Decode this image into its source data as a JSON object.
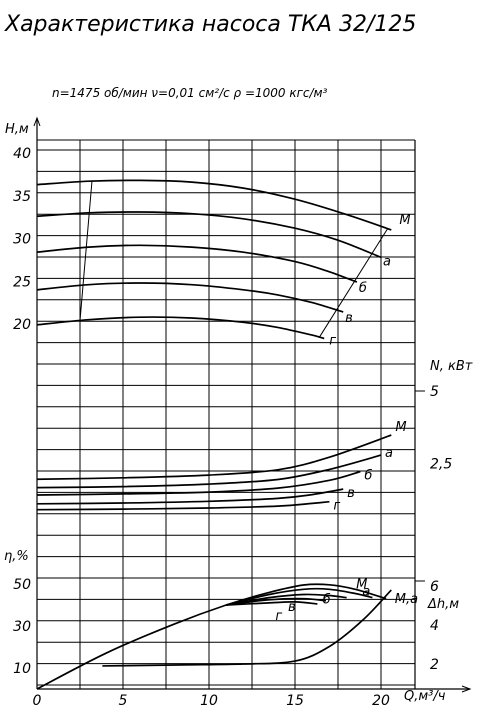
{
  "chart_data": {
    "type": "line",
    "title": "Характеристика насоса ТКА 32/125",
    "subtitle": "n=1475 об/мин   ν=0,01 см²/с    ρ =1000 кгс/м³",
    "x_axis": {
      "label": "Q,м³/ч",
      "range": [
        0,
        22
      ],
      "tick_labels": [
        "0",
        "5",
        "10",
        "15",
        "20"
      ]
    },
    "panels": [
      {
        "id": "head",
        "ylabel": "H,м",
        "ylim": [
          17.5,
          40
        ],
        "tick_labels": [
          "20",
          "25",
          "30",
          "35",
          "40"
        ],
        "series": [
          {
            "name": "M",
            "points": [
              [
                0,
                36.3
              ],
              [
                3,
                36.7
              ],
              [
                6,
                36.8
              ],
              [
                9,
                36.6
              ],
              [
                12,
                35.9
              ],
              [
                15,
                34.6
              ],
              [
                18,
                32.8
              ],
              [
                20.6,
                31.0
              ]
            ]
          },
          {
            "name": "а",
            "points": [
              [
                0,
                32.6
              ],
              [
                3,
                33.0
              ],
              [
                6,
                33.1
              ],
              [
                9,
                32.9
              ],
              [
                12,
                32.3
              ],
              [
                15,
                31.2
              ],
              [
                17.5,
                29.8
              ],
              [
                20,
                27.8
              ]
            ]
          },
          {
            "name": "б",
            "points": [
              [
                0,
                28.4
              ],
              [
                3,
                29.0
              ],
              [
                6,
                29.2
              ],
              [
                9,
                29.0
              ],
              [
                12,
                28.4
              ],
              [
                15,
                27.3
              ],
              [
                17,
                26.1
              ],
              [
                18.6,
                24.9
              ]
            ]
          },
          {
            "name": "в",
            "points": [
              [
                0,
                24.0
              ],
              [
                3,
                24.6
              ],
              [
                6,
                24.8
              ],
              [
                9,
                24.6
              ],
              [
                12,
                24.0
              ],
              [
                14,
                23.4
              ],
              [
                16,
                22.5
              ],
              [
                17.8,
                21.4
              ]
            ]
          },
          {
            "name": "г",
            "points": [
              [
                0,
                19.9
              ],
              [
                3,
                20.5
              ],
              [
                6,
                20.8
              ],
              [
                9,
                20.7
              ],
              [
                12,
                20.2
              ],
              [
                14,
                19.6
              ],
              [
                16,
                18.7
              ],
              [
                16.7,
                18.3
              ]
            ]
          }
        ],
        "impeller_trim_lines": [
          {
            "from": [
              2.5,
              20.4
            ],
            "to": [
              3.2,
              36.8
            ]
          },
          {
            "from": [
              16.4,
              18.4
            ],
            "to": [
              20.4,
              31.2
            ]
          }
        ]
      },
      {
        "id": "power",
        "ylabel": "N, кВт",
        "tick_labels": [
          "2,5",
          "5"
        ],
        "series": [
          {
            "name": "M",
            "points": [
              [
                0,
                1.75
              ],
              [
                5,
                1.82
              ],
              [
                10,
                1.95
              ],
              [
                14,
                2.2
              ],
              [
                17,
                2.8
              ],
              [
                20.6,
                3.85
              ]
            ]
          },
          {
            "name": "а",
            "points": [
              [
                0,
                1.35
              ],
              [
                5,
                1.4
              ],
              [
                10,
                1.52
              ],
              [
                14,
                1.74
              ],
              [
                17,
                2.22
              ],
              [
                20,
                2.9
              ]
            ]
          },
          {
            "name": "б",
            "points": [
              [
                0,
                1.0
              ],
              [
                5,
                1.05
              ],
              [
                10,
                1.14
              ],
              [
                14,
                1.33
              ],
              [
                17,
                1.7
              ],
              [
                18.8,
                2.12
              ]
            ]
          },
          {
            "name": "в",
            "points": [
              [
                0,
                0.58
              ],
              [
                5,
                0.62
              ],
              [
                10,
                0.7
              ],
              [
                14,
                0.84
              ],
              [
                16,
                1.02
              ],
              [
                17.8,
                1.28
              ]
            ]
          },
          {
            "name": "г",
            "points": [
              [
                0,
                0.3
              ],
              [
                5,
                0.33
              ],
              [
                10,
                0.38
              ],
              [
                14,
                0.47
              ],
              [
                16,
                0.6
              ],
              [
                17,
                0.68
              ]
            ]
          }
        ]
      },
      {
        "id": "efficiency",
        "ylabel": "η,%",
        "ylim": [
          0,
          58
        ],
        "tick_labels": [
          "10",
          "30",
          "50"
        ],
        "series": [
          {
            "name": "M",
            "points": [
              [
                0,
                0
              ],
              [
                4,
                17
              ],
              [
                8,
                31
              ],
              [
                11,
                40
              ],
              [
                13.5,
                46
              ],
              [
                15.5,
                49.5
              ],
              [
                17,
                49.6
              ],
              [
                18.5,
                47.5
              ],
              [
                20.3,
                43.0
              ]
            ]
          },
          {
            "name": "а",
            "points": [
              [
                11,
                40
              ],
              [
                13.5,
                45
              ],
              [
                15.5,
                47.5
              ],
              [
                17,
                47.5
              ],
              [
                18.5,
                45.5
              ],
              [
                19.5,
                43.5
              ]
            ]
          },
          {
            "name": "б",
            "points": [
              [
                11,
                40
              ],
              [
                13.5,
                43.5
              ],
              [
                15.5,
                45
              ],
              [
                17,
                44.5
              ],
              [
                18,
                43.5
              ]
            ]
          },
          {
            "name": "в",
            "points": [
              [
                11,
                40
              ],
              [
                13.5,
                42.5
              ],
              [
                15.5,
                43
              ],
              [
                16.8,
                42
              ]
            ]
          },
          {
            "name": "г",
            "points": [
              [
                11,
                40
              ],
              [
                13.5,
                41
              ],
              [
                15,
                41.5
              ],
              [
                16.3,
                40.5
              ]
            ]
          }
        ]
      },
      {
        "id": "npsh",
        "ylabel": "Δh,м",
        "tick_labels": [
          "2",
          "4",
          "6"
        ],
        "series": [
          {
            "name": "Δh",
            "points": [
              [
                3.8,
                1.9
              ],
              [
                8,
                1.95
              ],
              [
                12,
                2.0
              ],
              [
                15,
                2.15
              ],
              [
                17,
                2.9
              ],
              [
                19,
                4.3
              ],
              [
                20.6,
                5.8
              ]
            ]
          }
        ]
      }
    ],
    "grid": true
  }
}
